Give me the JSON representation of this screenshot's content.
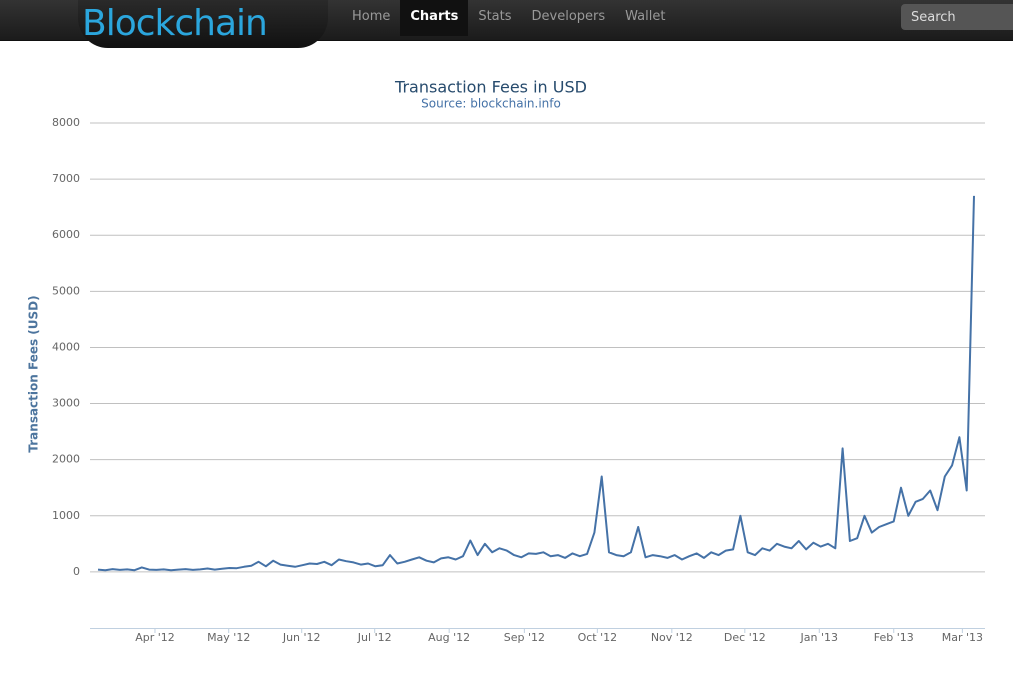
{
  "nav": {
    "logo": "Blockchain",
    "items": [
      "Home",
      "Charts",
      "Stats",
      "Developers",
      "Wallet"
    ],
    "search_placeholder": "Search"
  },
  "chart_data": {
    "type": "line",
    "title": "Transaction Fees in USD",
    "subtitle": "Source: blockchain.info",
    "y_label": "Transaction Fees (USD)",
    "series": [
      {
        "name": "Transaction Fees",
        "color": "#4572a7",
        "values": [
          40,
          30,
          50,
          35,
          45,
          30,
          80,
          40,
          35,
          45,
          30,
          40,
          50,
          35,
          45,
          60,
          40,
          55,
          70,
          65,
          90,
          110,
          180,
          100,
          200,
          130,
          110,
          90,
          120,
          150,
          140,
          180,
          120,
          220,
          190,
          170,
          130,
          150,
          100,
          120,
          300,
          150,
          180,
          220,
          260,
          200,
          170,
          240,
          260,
          220,
          280,
          560,
          300,
          500,
          350,
          420,
          380,
          300,
          260,
          330,
          320,
          350,
          280,
          300,
          250,
          330,
          280,
          320,
          700,
          1700,
          350,
          300,
          280,
          350,
          800,
          260,
          300,
          280,
          250,
          300,
          220,
          280,
          330,
          250,
          350,
          300,
          380,
          400,
          1000,
          350,
          300,
          420,
          380,
          500,
          450,
          420,
          550,
          400,
          520,
          450,
          500,
          420,
          2200,
          550,
          600,
          1000,
          700,
          800,
          850,
          900,
          1500,
          1000,
          1250,
          1300,
          1450,
          1100,
          1700,
          1900,
          2400,
          1450,
          6700
        ]
      }
    ],
    "xlim": [
      -1.1,
      121.5
    ],
    "xticks": [
      {
        "value": 7.8,
        "label": "Apr '12"
      },
      {
        "value": 17.9,
        "label": "May '12"
      },
      {
        "value": 27.9,
        "label": "Jun '12"
      },
      {
        "value": 37.9,
        "label": "Jul '12"
      },
      {
        "value": 48.1,
        "label": "Aug '12"
      },
      {
        "value": 58.4,
        "label": "Sep '12"
      },
      {
        "value": 68.4,
        "label": "Oct '12"
      },
      {
        "value": 78.6,
        "label": "Nov '12"
      },
      {
        "value": 88.6,
        "label": "Dec '12"
      },
      {
        "value": 98.8,
        "label": "Jan '13"
      },
      {
        "value": 109.0,
        "label": "Feb '13"
      },
      {
        "value": 118.4,
        "label": "Mar '13"
      }
    ],
    "ylim": [
      -1000,
      8000
    ],
    "yticks": [
      0,
      1000,
      2000,
      3000,
      4000,
      5000,
      6000,
      7000,
      8000
    ],
    "grid": true
  }
}
